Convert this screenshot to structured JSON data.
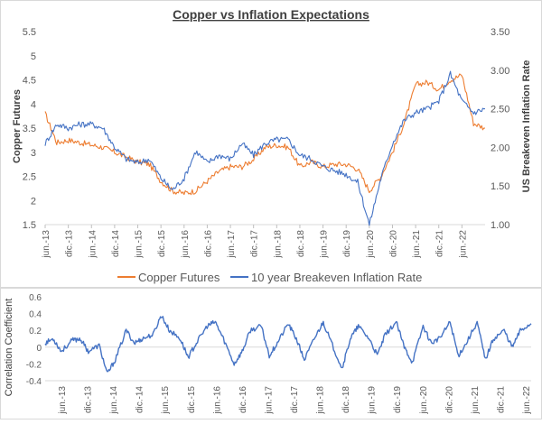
{
  "chart_data": [
    {
      "type": "line",
      "title": "Copper vs Inflation Expectations",
      "ylabel": "Copper Futures",
      "y2label": "US Breakeven Inflation Rate",
      "ylim": [
        1.5,
        5.5
      ],
      "yticks": [
        "1.5",
        "2",
        "2.5",
        "3",
        "3.5",
        "4",
        "4.5",
        "5",
        "5.5"
      ],
      "y2lim": [
        1.0,
        3.5
      ],
      "y2ticks": [
        "1.00",
        "1.50",
        "2.00",
        "2.50",
        "3.00",
        "3.50"
      ],
      "xlim": [
        0,
        19
      ],
      "xticks": [
        "jun.-13",
        "dic.-13",
        "jun.-14",
        "dic.-14",
        "jun.-15",
        "dic.-15",
        "jun.-16",
        "dic.-16",
        "jun.-17",
        "dic.-17",
        "jun.-18",
        "dic.-18",
        "jun.-19",
        "dic.-19",
        "jun.-20",
        "dic.-20",
        "jun.-21",
        "dic.-21",
        "jun.-22"
      ],
      "legend_position": "bottom",
      "series": [
        {
          "name": "Copper Futures",
          "axis": "left",
          "color": "#ED7D31",
          "points": [
            [
              0,
              3.8
            ],
            [
              0.5,
              3.2
            ],
            [
              1,
              3.25
            ],
            [
              1.5,
              3.2
            ],
            [
              2,
              3.15
            ],
            [
              2.5,
              3.1
            ],
            [
              3,
              3.0
            ],
            [
              3.5,
              2.9
            ],
            [
              4,
              2.8
            ],
            [
              4.5,
              2.75
            ],
            [
              5,
              2.4
            ],
            [
              5.5,
              2.2
            ],
            [
              6,
              2.15
            ],
            [
              6.5,
              2.2
            ],
            [
              7,
              2.4
            ],
            [
              7.5,
              2.6
            ],
            [
              8,
              2.7
            ],
            [
              8.5,
              2.7
            ],
            [
              9,
              2.85
            ],
            [
              9.5,
              3.1
            ],
            [
              10,
              3.15
            ],
            [
              10.5,
              3.1
            ],
            [
              11,
              2.7
            ],
            [
              11.5,
              2.8
            ],
            [
              12,
              2.7
            ],
            [
              12.5,
              2.75
            ],
            [
              13,
              2.75
            ],
            [
              13.5,
              2.65
            ],
            [
              14,
              2.2
            ],
            [
              14.5,
              2.5
            ],
            [
              15,
              3.0
            ],
            [
              15.5,
              3.6
            ],
            [
              16,
              4.4
            ],
            [
              16.5,
              4.45
            ],
            [
              17,
              4.3
            ],
            [
              17.5,
              4.5
            ],
            [
              18,
              4.6
            ],
            [
              18.5,
              3.6
            ],
            [
              19,
              3.5
            ]
          ]
        },
        {
          "name": "10 year Breakeven Inflation Rate",
          "axis": "right",
          "color": "#4472C4",
          "points": [
            [
              0,
              2.05
            ],
            [
              0.5,
              2.3
            ],
            [
              1,
              2.25
            ],
            [
              1.5,
              2.3
            ],
            [
              2,
              2.3
            ],
            [
              2.5,
              2.25
            ],
            [
              3,
              2.0
            ],
            [
              3.5,
              1.85
            ],
            [
              4,
              1.8
            ],
            [
              4.5,
              1.85
            ],
            [
              5,
              1.6
            ],
            [
              5.5,
              1.45
            ],
            [
              6,
              1.6
            ],
            [
              6.5,
              1.95
            ],
            [
              7,
              1.8
            ],
            [
              7.5,
              1.9
            ],
            [
              8,
              1.85
            ],
            [
              8.5,
              2.05
            ],
            [
              9,
              1.9
            ],
            [
              9.5,
              2.05
            ],
            [
              10,
              2.1
            ],
            [
              10.5,
              2.1
            ],
            [
              11,
              1.9
            ],
            [
              11.5,
              1.85
            ],
            [
              12,
              1.75
            ],
            [
              12.5,
              1.7
            ],
            [
              13,
              1.65
            ],
            [
              13.5,
              1.55
            ],
            [
              14,
              1.0
            ],
            [
              14.5,
              1.6
            ],
            [
              15,
              2.05
            ],
            [
              15.5,
              2.35
            ],
            [
              16,
              2.45
            ],
            [
              16.5,
              2.5
            ],
            [
              17,
              2.6
            ],
            [
              17.5,
              2.95
            ],
            [
              18,
              2.6
            ],
            [
              18.5,
              2.45
            ],
            [
              19,
              2.5
            ]
          ]
        }
      ]
    },
    {
      "type": "line",
      "ylabel": "Correlation Coefficient",
      "ylim": [
        -0.4,
        0.6
      ],
      "yticks": [
        "-0.4",
        "-0.2",
        "0",
        "0.2",
        "0.4",
        "0.6"
      ],
      "xlim": [
        0,
        18
      ],
      "xticks": [
        "jun.-13",
        "dic.-13",
        "jun.-14",
        "dic.-14",
        "jun.-15",
        "dic.-15",
        "jun.-16",
        "dic.-16",
        "jun.-17",
        "dic.-17",
        "jun.-18",
        "dic.-18",
        "jun.-19",
        "dic.-19",
        "jun.-20",
        "dic.-20",
        "jun.-21",
        "dic.-21",
        "jun.-22"
      ],
      "series": [
        {
          "name": "Correlation Coefficient",
          "color": "#4472C4",
          "points": [
            [
              0,
              0.05
            ],
            [
              0.3,
              0.1
            ],
            [
              0.6,
              -0.05
            ],
            [
              1,
              0.08
            ],
            [
              1.3,
              0.1
            ],
            [
              1.6,
              -0.05
            ],
            [
              2,
              0.02
            ],
            [
              2.3,
              -0.32
            ],
            [
              2.6,
              -0.15
            ],
            [
              3,
              0.2
            ],
            [
              3.3,
              0.05
            ],
            [
              3.6,
              0.1
            ],
            [
              4,
              0.15
            ],
            [
              4.3,
              0.38
            ],
            [
              4.6,
              0.2
            ],
            [
              5,
              0.1
            ],
            [
              5.3,
              -0.12
            ],
            [
              5.6,
              0.05
            ],
            [
              6,
              0.25
            ],
            [
              6.3,
              0.3
            ],
            [
              6.6,
              0.1
            ],
            [
              7,
              -0.2
            ],
            [
              7.3,
              -0.05
            ],
            [
              7.6,
              0.2
            ],
            [
              8,
              0.25
            ],
            [
              8.3,
              -0.1
            ],
            [
              8.6,
              0.05
            ],
            [
              9,
              0.28
            ],
            [
              9.3,
              0.1
            ],
            [
              9.6,
              -0.15
            ],
            [
              10,
              0.12
            ],
            [
              10.3,
              0.3
            ],
            [
              10.6,
              0.05
            ],
            [
              11,
              -0.25
            ],
            [
              11.3,
              0.1
            ],
            [
              11.6,
              0.25
            ],
            [
              12,
              0.1
            ],
            [
              12.3,
              -0.1
            ],
            [
              12.6,
              0.15
            ],
            [
              13,
              0.3
            ],
            [
              13.3,
              0.0
            ],
            [
              13.6,
              -0.18
            ],
            [
              14,
              0.25
            ],
            [
              14.3,
              0.05
            ],
            [
              14.6,
              0.1
            ],
            [
              15,
              0.3
            ],
            [
              15.3,
              -0.1
            ],
            [
              15.6,
              0.05
            ],
            [
              16,
              0.3
            ],
            [
              16.3,
              -0.15
            ],
            [
              16.6,
              0.1
            ],
            [
              17,
              0.2
            ],
            [
              17.3,
              0.0
            ],
            [
              17.6,
              0.2
            ],
            [
              18,
              0.28
            ]
          ]
        }
      ]
    }
  ]
}
